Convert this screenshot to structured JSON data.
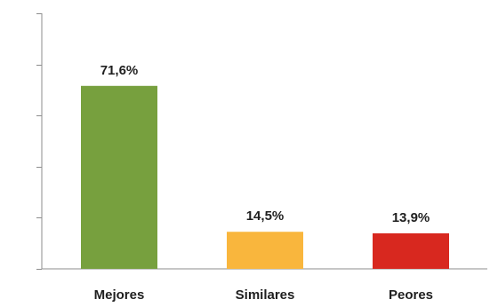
{
  "chart_data": {
    "type": "bar",
    "title": "",
    "xlabel": "",
    "ylabel": "",
    "categories": [
      "Mejores",
      "Similares",
      "Peores"
    ],
    "values": [
      71.6,
      14.5,
      13.9
    ],
    "data_labels": [
      "71,6%",
      "14,5%",
      "13,9%"
    ],
    "colors": [
      "#77a03e",
      "#f9b63d",
      "#d8281f"
    ],
    "ylim": [
      0,
      100
    ],
    "y_tick_values": [
      0,
      20,
      40,
      60,
      80,
      100
    ],
    "y_tick_labels_shown": false,
    "grid": false,
    "legend": "none"
  }
}
